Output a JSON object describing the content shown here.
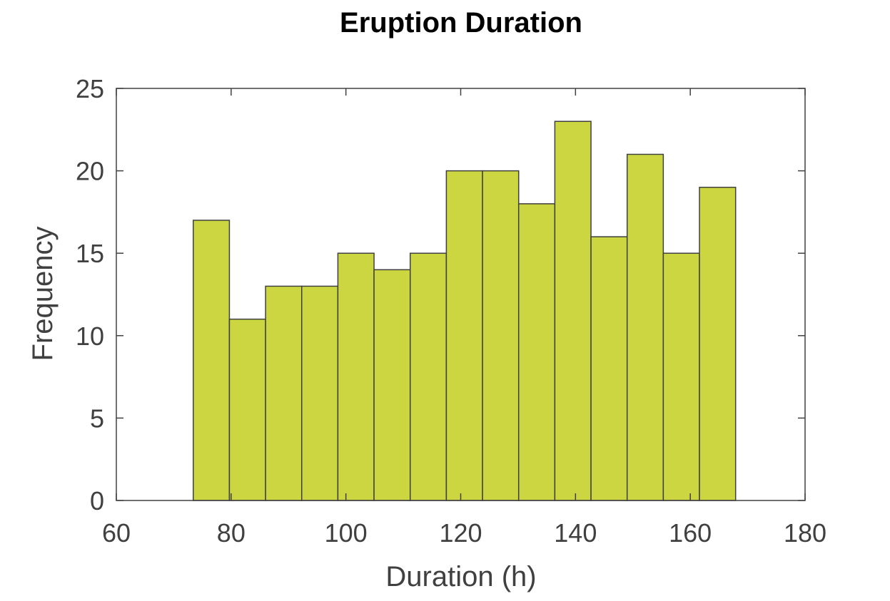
{
  "chart_data": {
    "type": "bar",
    "title": "Eruption Duration",
    "xlabel": "Duration (h)",
    "ylabel": "Frequency",
    "xlim": [
      60,
      180
    ],
    "ylim": [
      0,
      25
    ],
    "xticks": [
      60,
      80,
      100,
      120,
      140,
      160,
      180
    ],
    "yticks": [
      0,
      5,
      10,
      15,
      20,
      25
    ],
    "bin_edges": [
      73.4,
      79.7,
      86.0,
      92.3,
      98.6,
      104.9,
      111.2,
      117.5,
      123.8,
      130.1,
      136.4,
      142.7,
      149.0,
      155.3,
      161.6,
      167.9
    ],
    "values": [
      17,
      11,
      13,
      13,
      15,
      14,
      15,
      20,
      20,
      18,
      23,
      16,
      21,
      15,
      19
    ],
    "bar_color": "#cbd640",
    "edge_color": "#404040",
    "grid": false
  }
}
